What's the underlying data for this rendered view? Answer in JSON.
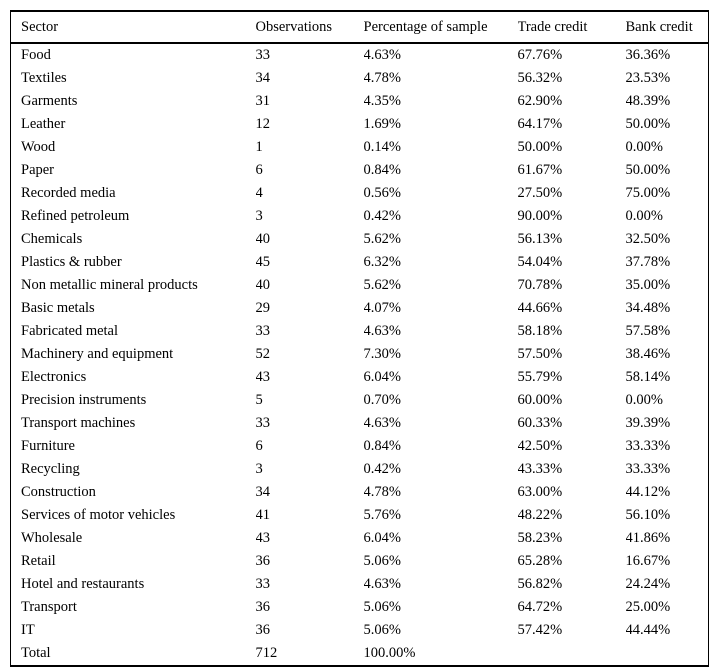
{
  "colors": {
    "background": "#ffffff",
    "text": "#000000",
    "rule": "#000000"
  },
  "table": {
    "columns": [
      {
        "key": "sector",
        "label": "Sector"
      },
      {
        "key": "observations",
        "label": "Observations"
      },
      {
        "key": "percentage_of_sample",
        "label": "Percentage of sample"
      },
      {
        "key": "trade_credit",
        "label": "Trade credit"
      },
      {
        "key": "bank_credit",
        "label": "Bank credit"
      }
    ],
    "rows": [
      [
        "Food",
        "33",
        "4.63%",
        "67.76%",
        "36.36%"
      ],
      [
        "Textiles",
        "34",
        "4.78%",
        "56.32%",
        "23.53%"
      ],
      [
        "Garments",
        "31",
        "4.35%",
        "62.90%",
        "48.39%"
      ],
      [
        "Leather",
        "12",
        "1.69%",
        "64.17%",
        "50.00%"
      ],
      [
        "Wood",
        "1",
        "0.14%",
        "50.00%",
        "0.00%"
      ],
      [
        "Paper",
        "6",
        "0.84%",
        "61.67%",
        "50.00%"
      ],
      [
        "Recorded media",
        "4",
        "0.56%",
        "27.50%",
        "75.00%"
      ],
      [
        "Refined petroleum",
        "3",
        "0.42%",
        "90.00%",
        "0.00%"
      ],
      [
        "Chemicals",
        "40",
        "5.62%",
        "56.13%",
        "32.50%"
      ],
      [
        "Plastics & rubber",
        "45",
        "6.32%",
        "54.04%",
        "37.78%"
      ],
      [
        "Non metallic mineral products",
        "40",
        "5.62%",
        "70.78%",
        "35.00%"
      ],
      [
        "Basic metals",
        "29",
        "4.07%",
        "44.66%",
        "34.48%"
      ],
      [
        "Fabricated metal",
        "33",
        "4.63%",
        "58.18%",
        "57.58%"
      ],
      [
        "Machinery and equipment",
        "52",
        "7.30%",
        "57.50%",
        "38.46%"
      ],
      [
        "Electronics",
        "43",
        "6.04%",
        "55.79%",
        "58.14%"
      ],
      [
        "Precision instruments",
        "5",
        "0.70%",
        "60.00%",
        "0.00%"
      ],
      [
        "Transport machines",
        "33",
        "4.63%",
        "60.33%",
        "39.39%"
      ],
      [
        "Furniture",
        "6",
        "0.84%",
        "42.50%",
        "33.33%"
      ],
      [
        "Recycling",
        "3",
        "0.42%",
        "43.33%",
        "33.33%"
      ],
      [
        "Construction",
        "34",
        "4.78%",
        "63.00%",
        "44.12%"
      ],
      [
        "Services of motor vehicles",
        "41",
        "5.76%",
        "48.22%",
        "56.10%"
      ],
      [
        "Wholesale",
        "43",
        "6.04%",
        "58.23%",
        "41.86%"
      ],
      [
        "Retail",
        "36",
        "5.06%",
        "65.28%",
        "16.67%"
      ],
      [
        "Hotel and restaurants",
        "33",
        "4.63%",
        "56.82%",
        "24.24%"
      ],
      [
        "Transport",
        "36",
        "5.06%",
        "64.72%",
        "25.00%"
      ],
      [
        "IT",
        "36",
        "5.06%",
        "57.42%",
        "44.44%"
      ]
    ],
    "total_row": [
      "Total",
      "712",
      "100.00%",
      "",
      ""
    ]
  }
}
